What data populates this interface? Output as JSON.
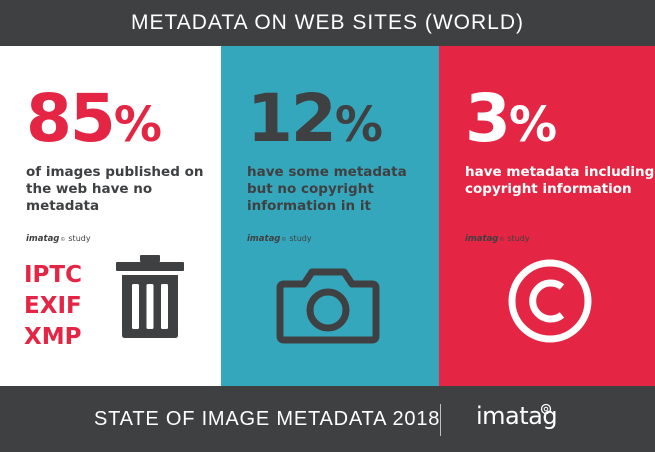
{
  "header": {
    "title": "METADATA ON WEB SITES (WORLD)"
  },
  "panels": [
    {
      "number": "85",
      "percent": "%",
      "description": "of images published on the web have no metadata",
      "credit": {
        "brand": "imatag",
        "mark": "©",
        "word": "study"
      },
      "formats": [
        "IPTC",
        "EXIF",
        "XMP"
      ],
      "icon": "trash-icon",
      "color": "#e42644"
    },
    {
      "number": "12",
      "percent": "%",
      "description": "have some metadata but no copyright information in it",
      "credit": {
        "brand": "imatag",
        "mark": "©",
        "word": "study"
      },
      "icon": "camera-icon",
      "color": "#35a7bc"
    },
    {
      "number": "3",
      "percent": "%",
      "description": "have metadata including copyright information",
      "credit": {
        "brand": "imatag",
        "mark": "©",
        "word": "study"
      },
      "icon": "copyright-icon",
      "color": "#e42644"
    }
  ],
  "footer": {
    "title": "STATE OF IMAGE METADATA 2018",
    "logo": "imatag"
  },
  "colors": {
    "dark": "#3f4042",
    "teal": "#35a7bc",
    "red": "#e42644"
  }
}
